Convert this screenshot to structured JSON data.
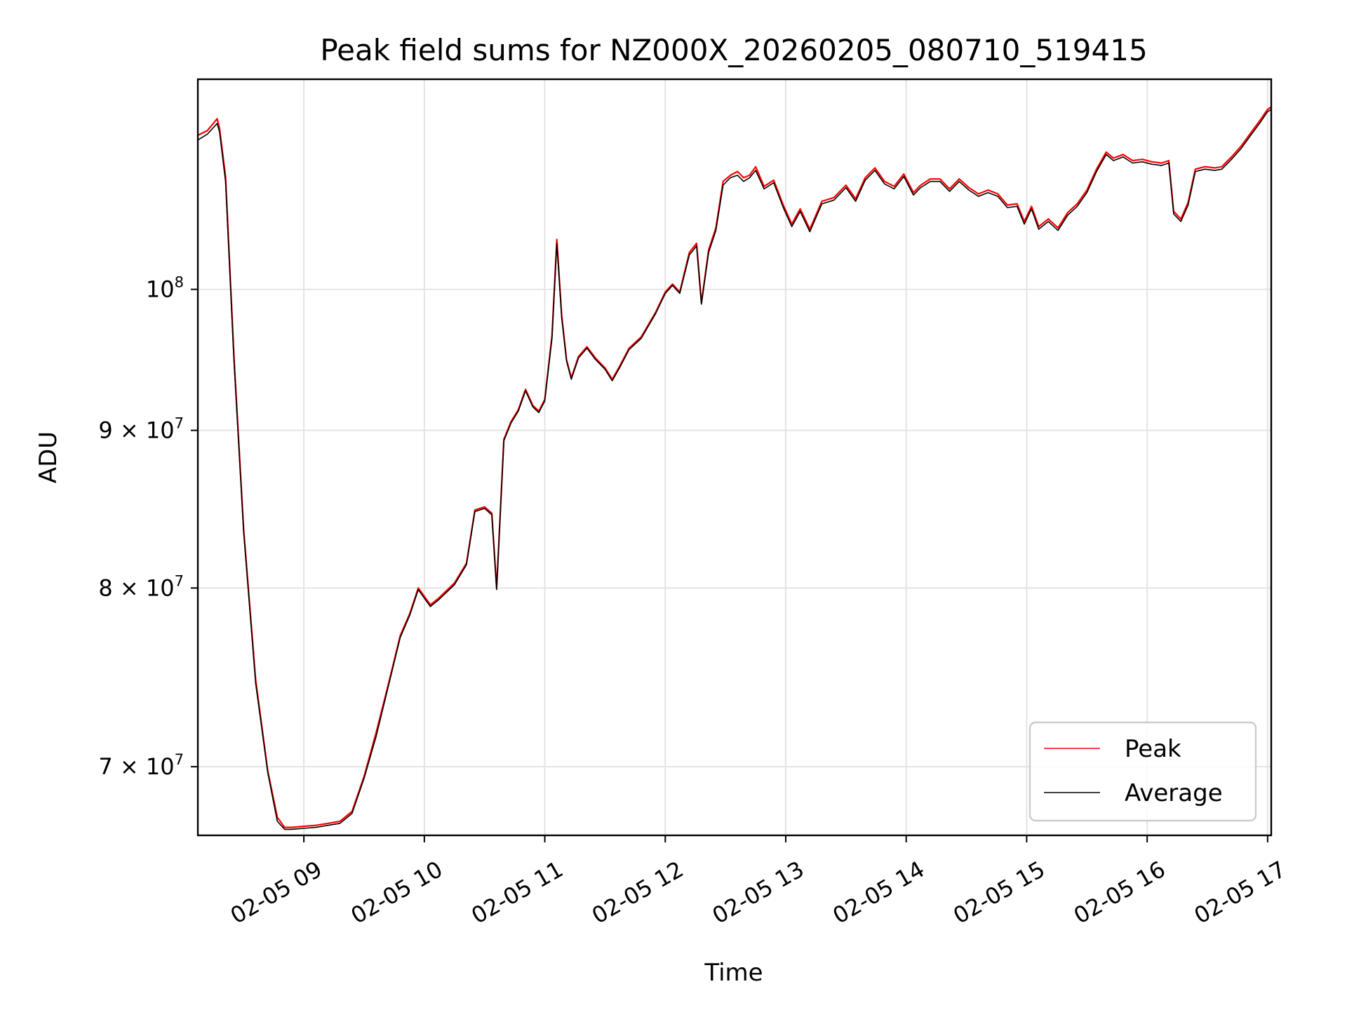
{
  "chart_data": {
    "type": "line",
    "title": "Peak field sums for NZ000X_20260205_080710_519415",
    "xlabel": "Time",
    "ylabel": "ADU",
    "yscale": "log",
    "xlim_hours": [
      8.12,
      17.03
    ],
    "ylim": [
      66500000,
      117000000
    ],
    "x_ticks": [
      {
        "hour": 9,
        "label": "02-05 09"
      },
      {
        "hour": 10,
        "label": "02-05 10"
      },
      {
        "hour": 11,
        "label": "02-05 11"
      },
      {
        "hour": 12,
        "label": "02-05 12"
      },
      {
        "hour": 13,
        "label": "02-05 13"
      },
      {
        "hour": 14,
        "label": "02-05 14"
      },
      {
        "hour": 15,
        "label": "02-05 15"
      },
      {
        "hour": 16,
        "label": "02-05 16"
      },
      {
        "hour": 17,
        "label": "02-05 17"
      }
    ],
    "y_ticks": [
      {
        "value": 70000000,
        "base": "7 × 10",
        "exp": "7"
      },
      {
        "value": 80000000,
        "base": "8 × 10",
        "exp": "7"
      },
      {
        "value": 90000000,
        "base": "9 × 10",
        "exp": "7"
      },
      {
        "value": 100000000,
        "base": "10",
        "exp": "8"
      }
    ],
    "grid": true,
    "legend_position": "bottom-right",
    "series": [
      {
        "name": "Peak",
        "color": "#ff0000",
        "role": "peak"
      },
      {
        "name": "Average",
        "color": "#000000",
        "role": "average"
      }
    ],
    "x": [
      8.12,
      8.2,
      8.28,
      8.3,
      8.35,
      8.42,
      8.5,
      8.6,
      8.7,
      8.78,
      8.84,
      8.9,
      9.0,
      9.1,
      9.2,
      9.3,
      9.4,
      9.5,
      9.6,
      9.7,
      9.8,
      9.88,
      9.95,
      10.05,
      10.12,
      10.25,
      10.35,
      10.42,
      10.5,
      10.56,
      10.6,
      10.66,
      10.72,
      10.78,
      10.84,
      10.9,
      10.95,
      11.0,
      11.06,
      11.1,
      11.14,
      11.18,
      11.22,
      11.28,
      11.35,
      11.42,
      11.5,
      11.56,
      11.62,
      11.7,
      11.8,
      11.92,
      12.0,
      12.06,
      12.12,
      12.2,
      12.26,
      12.3,
      12.36,
      12.42,
      12.48,
      12.54,
      12.6,
      12.65,
      12.7,
      12.75,
      12.82,
      12.9,
      12.98,
      13.05,
      13.12,
      13.2,
      13.3,
      13.4,
      13.5,
      13.58,
      13.66,
      13.74,
      13.82,
      13.9,
      13.98,
      14.06,
      14.12,
      14.2,
      14.28,
      14.36,
      14.44,
      14.52,
      14.6,
      14.68,
      14.76,
      14.84,
      14.92,
      14.98,
      15.04,
      15.1,
      15.18,
      15.26,
      15.34,
      15.42,
      15.5,
      15.58,
      15.66,
      15.72,
      15.8,
      15.88,
      15.96,
      16.04,
      16.12,
      16.18,
      16.22,
      16.28,
      16.34,
      16.4,
      16.48,
      16.56,
      16.62,
      16.7,
      16.78,
      16.86,
      16.94,
      17.0,
      17.03
    ],
    "peak": [
      112200000,
      112600000,
      113600000,
      112800000,
      108800000,
      95100000,
      83600000,
      74700000,
      69800000,
      67400000,
      66900000,
      66900000,
      66950000,
      67000000,
      67100000,
      67200000,
      67700000,
      69500000,
      71800000,
      74400000,
      77200000,
      78500000,
      80000000,
      79000000,
      79400000,
      80300000,
      81500000,
      84800000,
      85000000,
      84600000,
      80000000,
      89400000,
      90600000,
      91400000,
      92800000,
      91700000,
      91300000,
      92100000,
      96600000,
      103800000,
      98100000,
      94900000,
      93600000,
      95100000,
      95800000,
      95000000,
      94300000,
      93500000,
      94400000,
      95700000,
      96500000,
      98300000,
      99800000,
      100400000,
      99800000,
      102800000,
      103500000,
      99000000,
      103000000,
      104700000,
      108400000,
      108900000,
      109200000,
      108700000,
      108900000,
      109600000,
      108000000,
      108500000,
      106500000,
      105000000,
      106200000,
      104600000,
      106800000,
      107100000,
      108100000,
      107000000,
      108700000,
      109500000,
      108400000,
      108000000,
      109000000,
      107500000,
      108100000,
      108600000,
      108600000,
      107800000,
      108600000,
      107900000,
      107400000,
      107700000,
      107400000,
      106500000,
      106600000,
      105200000,
      106400000,
      104800000,
      105400000,
      104700000,
      105900000,
      106600000,
      107700000,
      109400000,
      110800000,
      110300000,
      110600000,
      110100000,
      110200000,
      110000000,
      109900000,
      110100000,
      106000000,
      105400000,
      106700000,
      109400000,
      109600000,
      109500000,
      109600000,
      110400000,
      111300000,
      112400000,
      113500000,
      114400000,
      114600000
    ],
    "average": [
      111800000,
      112300000,
      113200000,
      112500000,
      108400000,
      94800000,
      83400000,
      74500000,
      69700000,
      67200000,
      66800000,
      66800000,
      66850000,
      66900000,
      67000000,
      67100000,
      67600000,
      69400000,
      71600000,
      74300000,
      77100000,
      78400000,
      79900000,
      78900000,
      79300000,
      80200000,
      81400000,
      84700000,
      84900000,
      84500000,
      79900000,
      89300000,
      90500000,
      91300000,
      92700000,
      91600000,
      91200000,
      92000000,
      96400000,
      103500000,
      97900000,
      94800000,
      93500000,
      95000000,
      95700000,
      94900000,
      94200000,
      93400000,
      94300000,
      95600000,
      96400000,
      98200000,
      99700000,
      100300000,
      99700000,
      102600000,
      103300000,
      98900000,
      102800000,
      104500000,
      108100000,
      108700000,
      108900000,
      108400000,
      108700000,
      109300000,
      107800000,
      108300000,
      106300000,
      104800000,
      106000000,
      104400000,
      106600000,
      106900000,
      107900000,
      106800000,
      108500000,
      109300000,
      108200000,
      107800000,
      108800000,
      107300000,
      107900000,
      108400000,
      108400000,
      107600000,
      108400000,
      107700000,
      107200000,
      107500000,
      107200000,
      106300000,
      106400000,
      105000000,
      106200000,
      104600000,
      105200000,
      104500000,
      105700000,
      106400000,
      107500000,
      109200000,
      110600000,
      110100000,
      110400000,
      109900000,
      110000000,
      109800000,
      109700000,
      109900000,
      105800000,
      105200000,
      106500000,
      109200000,
      109400000,
      109300000,
      109400000,
      110200000,
      111100000,
      112200000,
      113300000,
      114200000,
      114400000
    ]
  }
}
